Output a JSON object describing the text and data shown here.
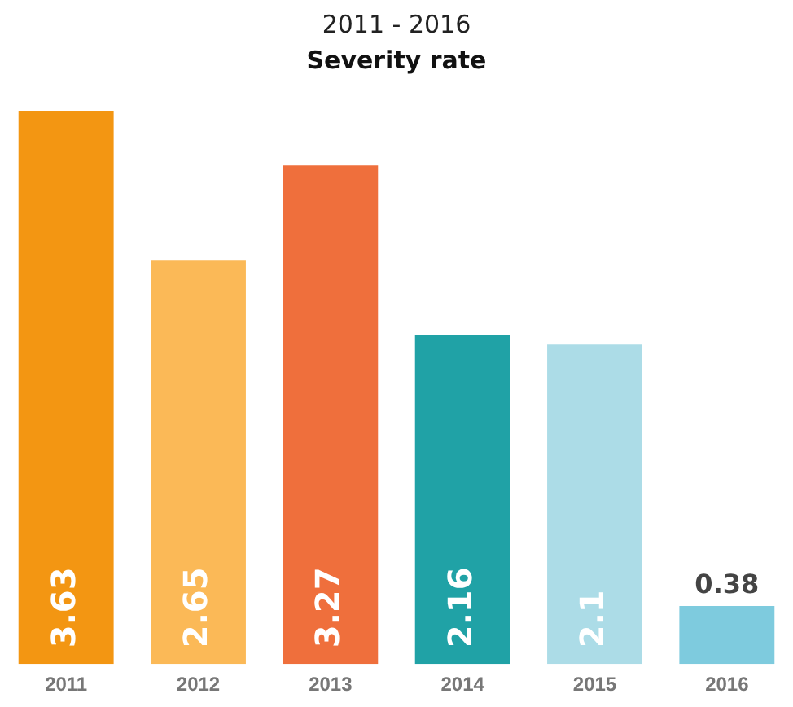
{
  "chart_data": {
    "type": "bar",
    "title": "2011 - 2016",
    "subtitle": "Severity rate",
    "categories": [
      "2011",
      "2012",
      "2013",
      "2014",
      "2015",
      "2016"
    ],
    "values": [
      3.63,
      2.65,
      3.27,
      2.16,
      2.1,
      0.38
    ],
    "colors": [
      "#f39612",
      "#fbb957",
      "#ef6f3c",
      "#20a2a6",
      "#acdce7",
      "#7ecbde"
    ],
    "data_labels": true,
    "grid": false,
    "legend": false
  }
}
